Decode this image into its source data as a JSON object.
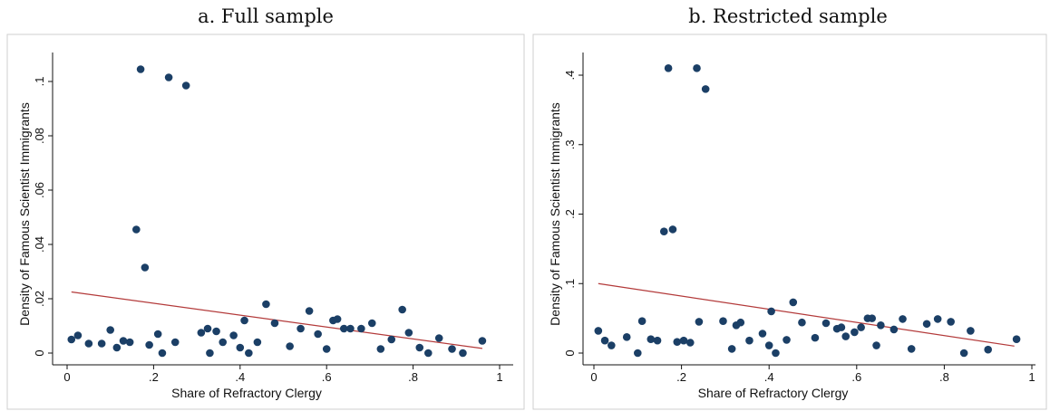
{
  "chart_data": [
    {
      "type": "scatter",
      "title": "a. Full sample",
      "xlabel": "Share of Refractory Clergy",
      "ylabel": "Density of Famous Scientist Immigrants",
      "xlim": [
        0,
        1
      ],
      "ylim": [
        0,
        0.11
      ],
      "xticks": [
        0,
        0.2,
        0.4,
        0.6,
        0.8,
        1
      ],
      "xtick_labels": [
        "0",
        ".2",
        ".4",
        ".6",
        ".8",
        "1"
      ],
      "yticks": [
        0,
        0.02,
        0.04,
        0.06,
        0.08,
        0.1
      ],
      "ytick_labels": [
        "0",
        ".02",
        ".04",
        ".06",
        ".08",
        ".1"
      ],
      "grid": false,
      "points": [
        [
          0.01,
          0.005
        ],
        [
          0.025,
          0.0065
        ],
        [
          0.05,
          0.0035
        ],
        [
          0.08,
          0.0035
        ],
        [
          0.1,
          0.0085
        ],
        [
          0.115,
          0.002
        ],
        [
          0.13,
          0.0045
        ],
        [
          0.145,
          0.004
        ],
        [
          0.16,
          0.0455
        ],
        [
          0.17,
          0.1045
        ],
        [
          0.18,
          0.0315
        ],
        [
          0.19,
          0.003
        ],
        [
          0.21,
          0.007
        ],
        [
          0.22,
          0.0
        ],
        [
          0.235,
          0.1015
        ],
        [
          0.25,
          0.004
        ],
        [
          0.275,
          0.0985
        ],
        [
          0.31,
          0.0075
        ],
        [
          0.325,
          0.009
        ],
        [
          0.33,
          0.0
        ],
        [
          0.345,
          0.008
        ],
        [
          0.36,
          0.004
        ],
        [
          0.385,
          0.0065
        ],
        [
          0.4,
          0.002
        ],
        [
          0.41,
          0.012
        ],
        [
          0.42,
          0.0
        ],
        [
          0.44,
          0.004
        ],
        [
          0.46,
          0.018
        ],
        [
          0.48,
          0.011
        ],
        [
          0.515,
          0.0025
        ],
        [
          0.54,
          0.009
        ],
        [
          0.56,
          0.0155
        ],
        [
          0.58,
          0.007
        ],
        [
          0.6,
          0.0015
        ],
        [
          0.615,
          0.012
        ],
        [
          0.625,
          0.0125
        ],
        [
          0.64,
          0.009
        ],
        [
          0.655,
          0.009
        ],
        [
          0.68,
          0.009
        ],
        [
          0.705,
          0.011
        ],
        [
          0.725,
          0.0015
        ],
        [
          0.75,
          0.005
        ],
        [
          0.775,
          0.016
        ],
        [
          0.79,
          0.0075
        ],
        [
          0.815,
          0.002
        ],
        [
          0.835,
          0.0
        ],
        [
          0.86,
          0.0055
        ],
        [
          0.89,
          0.0015
        ],
        [
          0.915,
          0.0
        ],
        [
          0.96,
          0.0045
        ]
      ],
      "fit_line": {
        "x": [
          0.01,
          0.96
        ],
        "y": [
          0.0225,
          0.0017
        ],
        "color": "#b33a3a"
      },
      "marker_color": "#1b3f66"
    },
    {
      "type": "scatter",
      "title": "b. Restricted sample",
      "xlabel": "Share of Refractory Clergy",
      "ylabel": "Density of Famous Scientist Immigrants",
      "xlim": [
        0,
        1
      ],
      "ylim": [
        0,
        0.43
      ],
      "xticks": [
        0,
        0.2,
        0.4,
        0.6,
        0.8,
        1
      ],
      "xtick_labels": [
        "0",
        ".2",
        ".4",
        ".6",
        ".8",
        "1"
      ],
      "yticks": [
        0,
        0.1,
        0.2,
        0.3,
        0.4
      ],
      "ytick_labels": [
        "0",
        ".1",
        ".2",
        ".3",
        ".4"
      ],
      "grid": false,
      "points": [
        [
          0.01,
          0.032
        ],
        [
          0.025,
          0.018
        ],
        [
          0.04,
          0.011
        ],
        [
          0.075,
          0.023
        ],
        [
          0.1,
          0.0
        ],
        [
          0.11,
          0.046
        ],
        [
          0.13,
          0.02
        ],
        [
          0.145,
          0.018
        ],
        [
          0.16,
          0.175
        ],
        [
          0.17,
          0.41
        ],
        [
          0.18,
          0.178
        ],
        [
          0.19,
          0.016
        ],
        [
          0.205,
          0.018
        ],
        [
          0.22,
          0.015
        ],
        [
          0.235,
          0.41
        ],
        [
          0.24,
          0.045
        ],
        [
          0.255,
          0.38
        ],
        [
          0.295,
          0.046
        ],
        [
          0.315,
          0.006
        ],
        [
          0.325,
          0.04
        ],
        [
          0.335,
          0.044
        ],
        [
          0.355,
          0.018
        ],
        [
          0.385,
          0.028
        ],
        [
          0.4,
          0.011
        ],
        [
          0.405,
          0.06
        ],
        [
          0.415,
          0.0
        ],
        [
          0.44,
          0.019
        ],
        [
          0.455,
          0.073
        ],
        [
          0.475,
          0.044
        ],
        [
          0.505,
          0.022
        ],
        [
          0.53,
          0.043
        ],
        [
          0.555,
          0.035
        ],
        [
          0.565,
          0.037
        ],
        [
          0.575,
          0.024
        ],
        [
          0.595,
          0.03
        ],
        [
          0.61,
          0.037
        ],
        [
          0.625,
          0.05
        ],
        [
          0.635,
          0.05
        ],
        [
          0.645,
          0.011
        ],
        [
          0.655,
          0.04
        ],
        [
          0.685,
          0.034
        ],
        [
          0.705,
          0.049
        ],
        [
          0.725,
          0.006
        ],
        [
          0.76,
          0.042
        ],
        [
          0.785,
          0.049
        ],
        [
          0.815,
          0.045
        ],
        [
          0.845,
          0.0
        ],
        [
          0.86,
          0.032
        ],
        [
          0.9,
          0.005
        ],
        [
          0.965,
          0.02
        ]
      ],
      "fit_line": {
        "x": [
          0.01,
          0.96
        ],
        "y": [
          0.1,
          0.01
        ],
        "color": "#b33a3a"
      },
      "marker_color": "#1b3f66"
    }
  ]
}
